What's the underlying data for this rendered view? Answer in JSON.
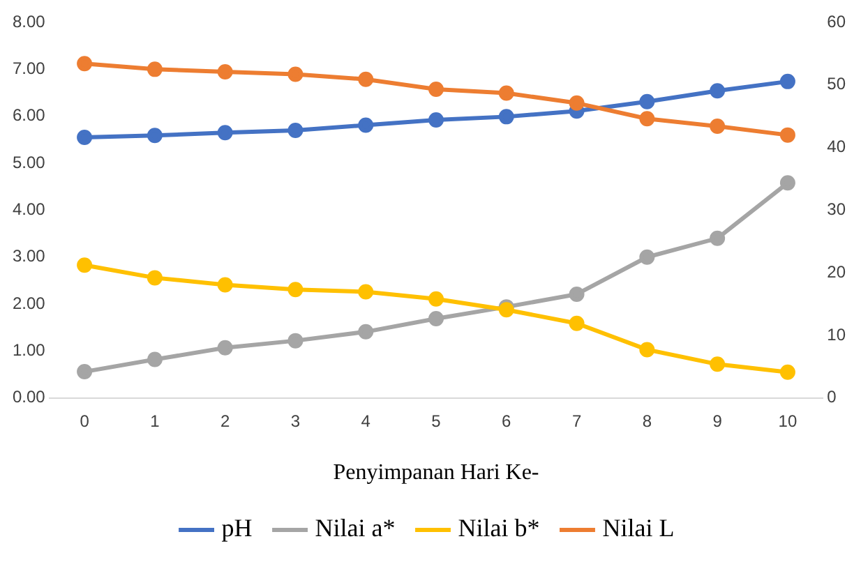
{
  "chart_data": {
    "type": "line",
    "xlabel": "Penyimpanan Hari Ke-",
    "categories": [
      "0",
      "1",
      "2",
      "3",
      "4",
      "5",
      "6",
      "7",
      "8",
      "9",
      "10"
    ],
    "series": [
      {
        "name": "pH",
        "color": "#4472c4",
        "values": [
          5.55,
          5.59,
          5.65,
          5.7,
          5.81,
          5.92,
          5.99,
          6.11,
          6.31,
          6.54,
          6.74
        ]
      },
      {
        "name": "Nilai a*",
        "color": "#a5a5a5",
        "values": [
          0.56,
          0.82,
          1.07,
          1.22,
          1.41,
          1.69,
          1.94,
          2.21,
          3.0,
          3.4,
          4.58
        ]
      },
      {
        "name": "Nilai b*",
        "color": "#ffc000",
        "values": [
          2.83,
          2.56,
          2.41,
          2.31,
          2.26,
          2.11,
          1.88,
          1.59,
          1.03,
          0.72,
          0.55
        ]
      },
      {
        "name": "Nilai L",
        "color": "#ed7d31",
        "axis": "y2",
        "values": [
          53.4,
          52.5,
          52.1,
          51.7,
          50.9,
          49.3,
          48.7,
          47.1,
          44.6,
          43.4,
          42.0
        ]
      }
    ],
    "ylim": [
      0,
      8
    ],
    "yticks": [
      {
        "value": 0,
        "label": "0.00"
      },
      {
        "value": 1,
        "label": "1.00"
      },
      {
        "value": 2,
        "label": "2.00"
      },
      {
        "value": 3,
        "label": "3.00"
      },
      {
        "value": 4,
        "label": "4.00"
      },
      {
        "value": 5,
        "label": "5.00"
      },
      {
        "value": 6,
        "label": "6.00"
      },
      {
        "value": 7,
        "label": "7.00"
      },
      {
        "value": 8,
        "label": "8.00"
      }
    ],
    "y2lim": [
      0,
      60
    ],
    "y2ticks": [
      0,
      10,
      20,
      30,
      40,
      50,
      60
    ],
    "grid": false,
    "legend": "bottom",
    "marker": "circle",
    "line_style": "solid"
  }
}
